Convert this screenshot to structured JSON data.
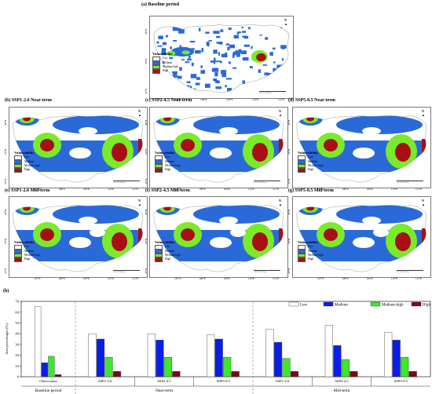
{
  "colors": {
    "low": "#ffffff",
    "medium": "#0a1ee6",
    "medium_high": "#3fe62a",
    "high": "#7a0a1a",
    "map_blue": "#2a6ad8",
    "map_green": "#7bea2a",
    "map_red": "#a80f14"
  },
  "vulnerability_title": "Vulnerability",
  "classes": [
    "Low",
    "Medium",
    "Medium-high",
    "High"
  ],
  "north_label": "N",
  "scale_labels": [
    "0",
    "25",
    "50",
    "100",
    "km"
  ],
  "panels": [
    {
      "title": "(a) Baseline period",
      "lon_ticks": [
        "107°E",
        "108°E",
        "109°E",
        "110°E",
        "111°E"
      ],
      "lat_ticks": [
        "34°N",
        "33°N",
        "32°N"
      ]
    },
    {
      "title": "(b) SSP1-2.6  Near-term",
      "lon_ticks": [
        "107°E",
        "108°E",
        "109°E",
        "110°E",
        "111°E"
      ],
      "lat_ticks": [
        "34°N",
        "33°N",
        "32°N"
      ]
    },
    {
      "title": "(c) SSP2-4.5  Near-term",
      "lon_ticks": [
        "107°E",
        "108°E",
        "109°E",
        "110°E",
        "111°E"
      ],
      "lat_ticks": [
        "34°N",
        "33°N",
        "32°N"
      ]
    },
    {
      "title": "(d) SSP5-8.5  Near-term",
      "lon_ticks": [
        "107°E",
        "108°E",
        "109°E",
        "110°E",
        "111°E"
      ],
      "lat_ticks": [
        "34°N",
        "33°N",
        "32°N"
      ]
    },
    {
      "title": "(e) SSP1-2.6  Mid-term",
      "lon_ticks": [
        "107°E",
        "108°E",
        "109°E",
        "110°E",
        "111°E"
      ],
      "lat_ticks": [
        "34°N",
        "33°N",
        "32°N"
      ]
    },
    {
      "title": "(f) SSP2-4.5  Mid-term",
      "lon_ticks": [
        "107°E",
        "108°E",
        "109°E",
        "110°E",
        "111°E"
      ],
      "lat_ticks": [
        "34°N",
        "33°N",
        "32°N"
      ]
    },
    {
      "title": "(g) SSP5-8.5  Mid-term",
      "lon_ticks": [
        "107°E",
        "108°E",
        "109°E",
        "110°E",
        "111°E"
      ],
      "lat_ticks": [
        "34°N",
        "33°N",
        "32°N"
      ]
    }
  ],
  "chart_data": {
    "type": "bar",
    "title": "(h)",
    "ylabel": "Area percentages (%)",
    "ylim": [
      0,
      70
    ],
    "yticks": [
      0,
      10,
      20,
      30,
      40,
      50,
      60,
      70
    ],
    "legend_position": "top-right",
    "series_names": [
      "Low",
      "Medium",
      "Medium-high",
      "High"
    ],
    "groups": [
      {
        "period": "Baseline period",
        "categories": [
          {
            "label": "Observation",
            "values": [
              65,
              13,
              19,
              2
            ]
          }
        ]
      },
      {
        "period": "Near-term",
        "categories": [
          {
            "label": "SSP1-2.6",
            "values": [
              40,
              35,
              18,
              5
            ]
          },
          {
            "label": "SSP2-4.5",
            "values": [
              40,
              34,
              18,
              5
            ]
          },
          {
            "label": "SSP5-8.5",
            "values": [
              39,
              35,
              18,
              5
            ]
          }
        ]
      },
      {
        "period": "Mid-term",
        "categories": [
          {
            "label": "SSP1-2.6",
            "values": [
              44,
              32,
              17,
              5
            ]
          },
          {
            "label": "SSP2-4.5",
            "values": [
              48,
              29,
              16,
              5
            ]
          },
          {
            "label": "SSP5-8.5",
            "values": [
              41,
              34,
              18,
              5
            ]
          }
        ]
      }
    ]
  }
}
